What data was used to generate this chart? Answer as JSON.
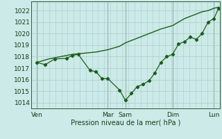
{
  "background_color": "#cceae8",
  "grid_color": "#aacccc",
  "line_color": "#1a5e1a",
  "xlabel": "Pression niveau de la mer( hPa )",
  "ylim": [
    1013.5,
    1022.8
  ],
  "yticks": [
    1014,
    1015,
    1016,
    1017,
    1018,
    1019,
    1020,
    1021,
    1022
  ],
  "xtick_labels": [
    "Ven",
    "Mar",
    "Sam",
    "Dim",
    "Lun"
  ],
  "xtick_positions": [
    0,
    6,
    7.5,
    11.5,
    15
  ],
  "vline_positions": [
    0,
    6,
    7.5,
    11.5,
    15
  ],
  "xmax": 15.5,
  "xmin": -0.5,
  "line1_x": [
    0,
    1,
    2,
    3,
    4,
    5,
    6,
    7,
    7.5,
    8.5,
    9.5,
    10.5,
    11.5,
    12,
    12.5,
    13,
    13.5,
    14,
    14.5,
    15,
    15.4
  ],
  "line1_y": [
    1017.5,
    1017.8,
    1018.0,
    1018.2,
    1018.3,
    1018.4,
    1018.6,
    1018.9,
    1019.2,
    1019.6,
    1020.0,
    1020.4,
    1020.7,
    1021.0,
    1021.3,
    1021.5,
    1021.7,
    1021.9,
    1022.0,
    1022.2,
    1022.3
  ],
  "line2_x": [
    0,
    0.7,
    1.5,
    2.5,
    3.0,
    3.5,
    4.5,
    5.0,
    5.5,
    6.0,
    7.0,
    7.5,
    8.0,
    8.5,
    9.0,
    9.5,
    10.0,
    10.5,
    11.0,
    11.5,
    12.0,
    12.5,
    13.0,
    13.5,
    14.0,
    14.5,
    15.0,
    15.4
  ],
  "line2_y": [
    1017.5,
    1017.3,
    1017.8,
    1017.85,
    1018.1,
    1018.2,
    1016.8,
    1016.7,
    1016.1,
    1016.1,
    1015.1,
    1014.2,
    1014.8,
    1015.4,
    1015.6,
    1015.9,
    1016.6,
    1017.5,
    1018.0,
    1018.2,
    1019.1,
    1019.3,
    1019.7,
    1019.5,
    1020.0,
    1021.0,
    1021.3,
    1022.2
  ],
  "marker2_x": [
    0,
    0.7,
    1.5,
    2.5,
    3.0,
    3.5,
    4.5,
    5.0,
    5.5,
    6.0,
    7.0,
    7.5,
    8.0,
    8.5,
    9.0,
    9.5,
    10.0,
    10.5,
    11.0,
    11.5,
    12.0,
    12.5,
    13.0,
    13.5,
    14.0,
    14.5,
    15.0,
    15.4
  ]
}
